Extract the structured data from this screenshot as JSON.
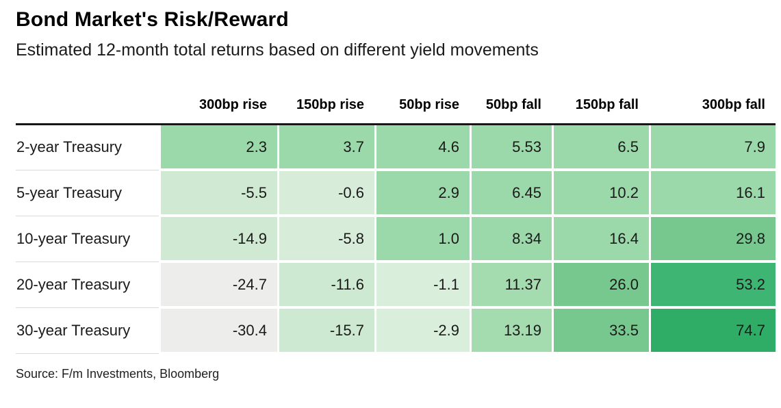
{
  "header": {
    "title": "Bond Market's Risk/Reward",
    "subtitle": "Estimated 12-month total returns based on different yield movements"
  },
  "table": {
    "columns": [
      "300bp rise",
      "150bp rise",
      "50bp rise",
      "50bp fall",
      "150bp fall",
      "300bp fall"
    ],
    "rows": [
      {
        "label": "2-year Treasury",
        "cells": [
          {
            "text": "2.3",
            "bg": "#9cd9aa"
          },
          {
            "text": "3.7",
            "bg": "#9cd9aa"
          },
          {
            "text": "4.6",
            "bg": "#9cd9aa"
          },
          {
            "text": "5.53",
            "bg": "#9cd9aa"
          },
          {
            "text": "6.5",
            "bg": "#9cd9aa"
          },
          {
            "text": "7.9",
            "bg": "#9cd9aa"
          }
        ]
      },
      {
        "label": "5-year Treasury",
        "cells": [
          {
            "text": "-5.5",
            "bg": "#cfe9d2"
          },
          {
            "text": "-0.6",
            "bg": "#d7ecd9"
          },
          {
            "text": "2.9",
            "bg": "#9cd9aa"
          },
          {
            "text": "6.45",
            "bg": "#9cd9aa"
          },
          {
            "text": "10.2",
            "bg": "#9cd9aa"
          },
          {
            "text": "16.1",
            "bg": "#9cd9aa"
          }
        ]
      },
      {
        "label": "10-year Treasury",
        "cells": [
          {
            "text": "-14.9",
            "bg": "#cfe9d2"
          },
          {
            "text": "-5.8",
            "bg": "#d7ecd9"
          },
          {
            "text": "1.0",
            "bg": "#9cd9aa"
          },
          {
            "text": "8.34",
            "bg": "#9cd9aa"
          },
          {
            "text": "16.4",
            "bg": "#9cd9aa"
          },
          {
            "text": "29.8",
            "bg": "#76c88e"
          }
        ]
      },
      {
        "label": "20-year Treasury",
        "cells": [
          {
            "text": "-24.7",
            "bg": "#ededeb"
          },
          {
            "text": "-11.6",
            "bg": "#cde9d1"
          },
          {
            "text": "-1.1",
            "bg": "#daeedc"
          },
          {
            "text": "11.37",
            "bg": "#a4dbaf"
          },
          {
            "text": "26.0",
            "bg": "#76c88e"
          },
          {
            "text": "53.2",
            "bg": "#3eb573"
          }
        ]
      },
      {
        "label": "30-year Treasury",
        "cells": [
          {
            "text": "-30.4",
            "bg": "#ededeb"
          },
          {
            "text": "-15.7",
            "bg": "#cde9d1"
          },
          {
            "text": "-2.9",
            "bg": "#daeedc"
          },
          {
            "text": "13.19",
            "bg": "#a4dbaf"
          },
          {
            "text": "33.5",
            "bg": "#76c88e"
          },
          {
            "text": "74.7",
            "bg": "#2fad66"
          }
        ]
      }
    ]
  },
  "footer": {
    "source": "Source: F/m Investments, Bloomberg"
  },
  "colors": {
    "header_rule": "#161616",
    "row_separator": "#d9d9d9",
    "negative_extreme": "#ededeb",
    "green_darkest": "#2fad66"
  },
  "chart_data": {
    "type": "heatmap",
    "title": "Bond Market's Risk/Reward",
    "subtitle": "Estimated 12-month total returns based on different yield movements",
    "columns": [
      "300bp rise",
      "150bp rise",
      "50bp rise",
      "50bp fall",
      "150bp fall",
      "300bp fall"
    ],
    "rows": [
      "2-year Treasury",
      "5-year Treasury",
      "10-year Treasury",
      "20-year Treasury",
      "30-year Treasury"
    ],
    "values": [
      [
        2.3,
        3.7,
        4.6,
        5.53,
        6.5,
        7.9
      ],
      [
        -5.5,
        -0.6,
        2.9,
        6.45,
        10.2,
        16.1
      ],
      [
        -14.9,
        -5.8,
        1.0,
        8.34,
        16.4,
        29.8
      ],
      [
        -24.7,
        -11.6,
        -1.1,
        11.37,
        26.0,
        53.2
      ],
      [
        -30.4,
        -15.7,
        -2.9,
        13.19,
        33.5,
        74.7
      ]
    ],
    "value_unit": "percent (12-month total return)",
    "color_scale": "light gray (most negative) through pale green to dark green (most positive)",
    "source": "Source: F/m Investments, Bloomberg",
    "legend": "none",
    "grid": "white gaps between cells, black rule under header"
  }
}
